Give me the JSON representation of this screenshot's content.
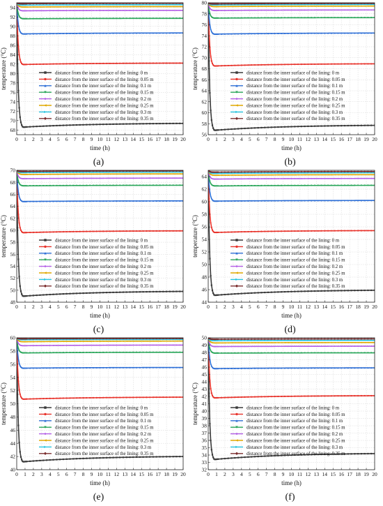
{
  "legend_labels": [
    "distance from the inner surface of the lining: 0 m",
    "distance from the inner surface of the lining: 0.05 m",
    "distance from the inner surface of the lining: 0.1 m",
    "distance from the inner surface of the lining: 0.15 m",
    "distance from the inner surface of the lining: 0.2 m",
    "distance from the inner surface of the lining: 0.25 m",
    "distance from the inner surface of the lining: 0.3 m",
    "distance from the inner surface of the lining: 0.35 m"
  ],
  "series_colors": [
    "#3a3a3a",
    "#e8332b",
    "#2e6fd6",
    "#2aa65a",
    "#b35ee6",
    "#e0a800",
    "#25c4e0",
    "#7a2c2c"
  ],
  "series_markers": [
    "square",
    "circle",
    "triangle-up",
    "triangle-down",
    "diamond",
    "triangle-left",
    "triangle-right",
    "hexagon"
  ],
  "chart_data": [
    {
      "type": "line",
      "caption": "(a)",
      "xlabel": "time (h)",
      "ylabel": "temperature (°C)",
      "xlim": [
        0,
        20
      ],
      "ylim": [
        67,
        95
      ],
      "yticks": [
        68,
        70,
        72,
        74,
        76,
        78,
        80,
        82,
        84,
        86,
        88,
        90,
        92,
        94
      ],
      "x_ticks": [
        0,
        1,
        2,
        3,
        4,
        5,
        6,
        7,
        8,
        9,
        10,
        11,
        12,
        13,
        14,
        15,
        16,
        17,
        18,
        19,
        20
      ],
      "grid": true,
      "legend_placement": "center-right",
      "series_start": 95,
      "series_min": [
        68.6,
        81.9,
        88.4,
        91.6,
        93.3,
        94.1,
        94.5,
        94.8
      ],
      "series_end": [
        69.4,
        82.2,
        88.6,
        91.7,
        93.4,
        94.2,
        94.6,
        94.9
      ]
    },
    {
      "type": "line",
      "caption": "(b)",
      "xlabel": "time (h)",
      "ylabel": "temperature (°C)",
      "xlim": [
        0,
        20
      ],
      "ylim": [
        56,
        80
      ],
      "yticks": [
        56,
        58,
        60,
        62,
        64,
        66,
        68,
        70,
        72,
        74,
        76,
        78,
        80
      ],
      "x_ticks": [
        0,
        1,
        2,
        3,
        4,
        5,
        6,
        7,
        8,
        9,
        10,
        11,
        12,
        13,
        14,
        15,
        16,
        17,
        18,
        19,
        20
      ],
      "grid": true,
      "legend_placement": "center-right",
      "series_start": 80,
      "series_min": [
        56.8,
        68.5,
        74.3,
        77.2,
        78.6,
        79.3,
        79.6,
        79.8
      ],
      "series_end": [
        57.7,
        68.9,
        74.5,
        77.3,
        78.7,
        79.4,
        79.7,
        79.9
      ]
    },
    {
      "type": "line",
      "caption": "(c)",
      "xlabel": "time (h)",
      "ylabel": "temperature (°C)",
      "xlim": [
        0,
        20
      ],
      "ylim": [
        48,
        70
      ],
      "yticks": [
        48,
        50,
        52,
        54,
        56,
        58,
        60,
        62,
        64,
        66,
        68,
        70
      ],
      "x_ticks": [
        0,
        1,
        2,
        3,
        4,
        5,
        6,
        7,
        8,
        9,
        10,
        11,
        12,
        13,
        14,
        15,
        16,
        17,
        18,
        19,
        20
      ],
      "grid": true,
      "legend_placement": "center-right",
      "series_start": 70,
      "series_min": [
        49.0,
        59.6,
        64.8,
        67.4,
        68.6,
        69.3,
        69.6,
        69.8
      ],
      "series_end": [
        49.8,
        59.9,
        64.9,
        67.5,
        68.7,
        69.4,
        69.7,
        69.9
      ]
    },
    {
      "type": "line",
      "caption": "(d)",
      "xlabel": "time (h)",
      "ylabel": "temperature (°C)",
      "xlim": [
        0,
        20
      ],
      "ylim": [
        44,
        65
      ],
      "yticks": [
        44,
        46,
        48,
        50,
        52,
        54,
        56,
        58,
        60,
        62,
        64
      ],
      "x_ticks": [
        0,
        1,
        2,
        3,
        4,
        5,
        6,
        7,
        8,
        9,
        10,
        11,
        12,
        13,
        14,
        15,
        16,
        17,
        18,
        19,
        20
      ],
      "grid": true,
      "legend_placement": "center-right",
      "series_start": 65,
      "series_min": [
        45.1,
        55.1,
        60.1,
        62.5,
        63.6,
        64.2,
        64.5,
        64.7
      ],
      "series_end": [
        45.9,
        55.4,
        60.2,
        62.6,
        63.7,
        64.3,
        64.6,
        64.8
      ]
    },
    {
      "type": "line",
      "caption": "(e)",
      "xlabel": "time (h)",
      "ylabel": "temperature (°C)",
      "xlim": [
        0,
        20
      ],
      "ylim": [
        40,
        60
      ],
      "yticks": [
        40,
        42,
        44,
        46,
        48,
        50,
        52,
        54,
        56,
        58,
        60
      ],
      "x_ticks": [
        0,
        1,
        2,
        3,
        4,
        5,
        6,
        7,
        8,
        9,
        10,
        11,
        12,
        13,
        14,
        15,
        16,
        17,
        18,
        19,
        20
      ],
      "grid": true,
      "legend_placement": "center-right",
      "series_start": 60,
      "series_min": [
        41.2,
        50.7,
        55.4,
        57.7,
        58.8,
        59.4,
        59.7,
        59.85
      ],
      "series_end": [
        42.0,
        51.0,
        55.5,
        57.8,
        58.9,
        59.5,
        59.75,
        59.9
      ]
    },
    {
      "type": "line",
      "caption": "(f)",
      "xlabel": "time (h)",
      "ylabel": "temperature (°C)",
      "xlim": [
        0,
        20
      ],
      "ylim": [
        32,
        50
      ],
      "yticks": [
        32,
        33,
        34,
        35,
        36,
        37,
        38,
        39,
        40,
        41,
        42,
        43,
        44,
        45,
        46,
        47,
        48,
        49,
        50
      ],
      "x_ticks": [
        0,
        1,
        2,
        3,
        4,
        5,
        6,
        7,
        8,
        9,
        10,
        11,
        12,
        13,
        14,
        15,
        16,
        17,
        18,
        19,
        20
      ],
      "grid": true,
      "legend_placement": "center-right",
      "series_start": 50,
      "series_min": [
        33.4,
        41.8,
        45.8,
        47.9,
        48.8,
        49.3,
        49.6,
        49.8
      ],
      "series_end": [
        34.2,
        42.1,
        45.9,
        47.95,
        48.85,
        49.35,
        49.65,
        49.85
      ]
    }
  ]
}
